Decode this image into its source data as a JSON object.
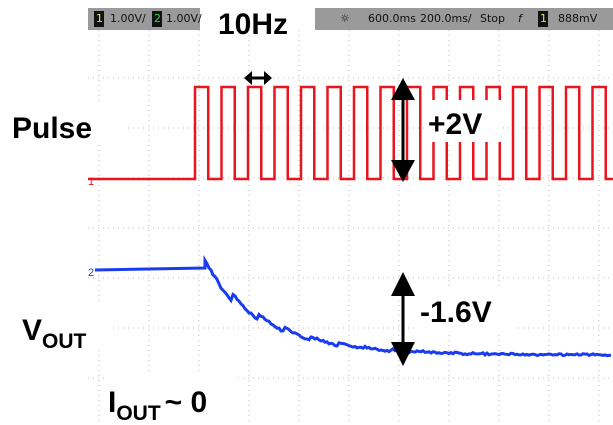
{
  "status_bar": {
    "ch1_label": "1",
    "ch1_scale": "1.00V/",
    "ch2_label": "2",
    "ch2_scale": "1.00V/",
    "delay": "600.0ms",
    "timebase": "200.0ms/",
    "run_state": "Stop",
    "trigger_edge": "f",
    "trigger_source": "1",
    "trigger_level": "888mV"
  },
  "markers": {
    "ch1": "1",
    "ch2": "2"
  },
  "annotations": {
    "frequency": "10Hz",
    "pulse": "Pulse",
    "pulse_amplitude": "+2V",
    "vout_drop": "-1.6V",
    "vout": {
      "main": "V",
      "sub": "OUT"
    },
    "iout": {
      "main": "I",
      "sub": "OUT",
      "value": "~ 0"
    }
  }
}
